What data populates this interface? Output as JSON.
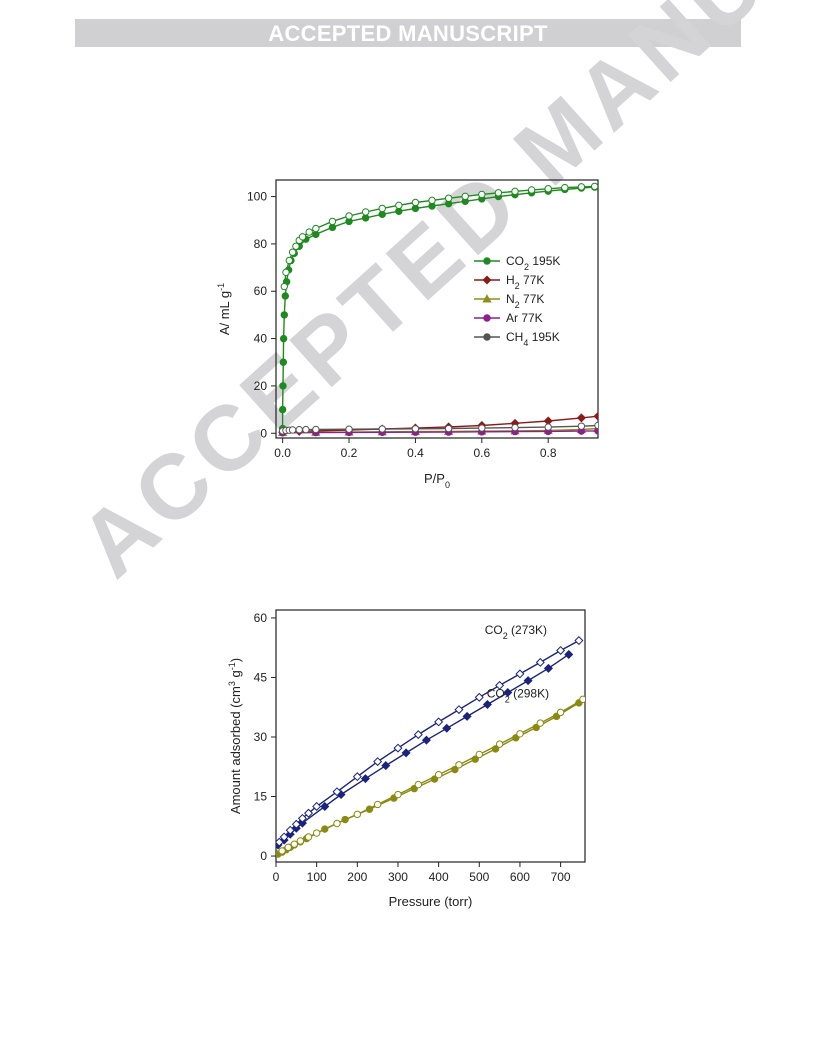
{
  "banner": "ACCEPTED MANUSCRIPT",
  "watermark": "ACCEPTED MANUSCRIPT",
  "chart_data": [
    {
      "type": "scatter",
      "xlabel": "P/P0",
      "xlabel_main": "P/P",
      "xlabel_sub": "0",
      "ylabel": "A/ mL g-1",
      "ylabel_main": "A/ mL g",
      "ylabel_sup": "-1",
      "xlim": [
        -0.02,
        0.95
      ],
      "ylim": [
        -2,
        107
      ],
      "xticks": [
        0.0,
        0.2,
        0.4,
        0.6,
        0.8
      ],
      "xtick_labels": [
        "0.0",
        "0.2",
        "0.4",
        "0.6",
        "0.8"
      ],
      "yticks": [
        0,
        20,
        40,
        60,
        80,
        100
      ],
      "ytick_labels": [
        "0",
        "20",
        "40",
        "60",
        "80",
        "100"
      ],
      "legend_position": "center-right",
      "legend": [
        {
          "main": "CO",
          "sub": "2",
          "rest": " 195K",
          "color": "#1f8a1f",
          "marker": "circle"
        },
        {
          "main": "H",
          "sub": "2",
          "rest": " 77K",
          "color": "#8b1a1a",
          "marker": "diamond"
        },
        {
          "main": "N",
          "sub": "2",
          "rest": " 77K",
          "color": "#8f8f1a",
          "marker": "triangle"
        },
        {
          "main": "Ar 77K",
          "sub": "",
          "rest": "",
          "color": "#8e1f8e",
          "marker": "circle"
        },
        {
          "main": "CH",
          "sub": "4",
          "rest": " 195K",
          "color": "#555555",
          "marker": "circle"
        }
      ],
      "series": [
        {
          "name": "CO2 195K adsorption",
          "color": "#1f8a1f",
          "marker": "circle",
          "filled": true,
          "x": [
            0.0,
            0.0,
            0.001,
            0.002,
            0.003,
            0.005,
            0.008,
            0.012,
            0.018,
            0.025,
            0.035,
            0.05,
            0.07,
            0.1,
            0.15,
            0.2,
            0.25,
            0.3,
            0.35,
            0.4,
            0.45,
            0.5,
            0.55,
            0.6,
            0.65,
            0.7,
            0.75,
            0.8,
            0.85,
            0.9,
            0.94
          ],
          "y": [
            2,
            10,
            20,
            30,
            40,
            50,
            58,
            64,
            69,
            73,
            76,
            79,
            82,
            84,
            87,
            89.5,
            91,
            92.5,
            93.8,
            95,
            96,
            97,
            98,
            99,
            100,
            100.8,
            101.6,
            102.3,
            103,
            103.6,
            104
          ]
        },
        {
          "name": "CO2 195K desorption",
          "color": "#1f8a1f",
          "marker": "circle",
          "filled": false,
          "x": [
            0.005,
            0.01,
            0.02,
            0.03,
            0.04,
            0.05,
            0.06,
            0.08,
            0.1,
            0.15,
            0.2,
            0.25,
            0.3,
            0.35,
            0.4,
            0.45,
            0.5,
            0.55,
            0.6,
            0.65,
            0.7,
            0.75,
            0.8,
            0.85,
            0.9,
            0.94
          ],
          "y": [
            62,
            68,
            73,
            76.5,
            79,
            81.5,
            83,
            85,
            86.5,
            89.5,
            91.8,
            93.5,
            95,
            96.3,
            97.5,
            98.4,
            99.3,
            100.1,
            100.9,
            101.6,
            102.2,
            102.8,
            103.3,
            103.8,
            104.1,
            104.3
          ]
        },
        {
          "name": "H2 77K",
          "color": "#8b1a1a",
          "marker": "diamond",
          "filled": true,
          "x": [
            0.0,
            0.05,
            0.1,
            0.2,
            0.3,
            0.4,
            0.5,
            0.6,
            0.7,
            0.8,
            0.9,
            0.95
          ],
          "y": [
            0.5,
            0.8,
            1.0,
            1.4,
            1.8,
            2.2,
            2.7,
            3.3,
            4.2,
            5.2,
            6.5,
            7.2
          ]
        },
        {
          "name": "N2 77K",
          "color": "#8f8f1a",
          "marker": "triangle",
          "filled": true,
          "x": [
            0.0,
            0.1,
            0.2,
            0.3,
            0.4,
            0.5,
            0.6,
            0.7,
            0.8,
            0.9,
            0.95
          ],
          "y": [
            0.3,
            0.4,
            0.5,
            0.6,
            0.7,
            0.8,
            0.9,
            1.0,
            1.2,
            1.6,
            2.0
          ]
        },
        {
          "name": "Ar 77K",
          "color": "#8e1f8e",
          "marker": "circle",
          "filled": true,
          "x": [
            0.0,
            0.1,
            0.2,
            0.3,
            0.4,
            0.5,
            0.6,
            0.7,
            0.8,
            0.9,
            0.95
          ],
          "y": [
            0.2,
            0.3,
            0.35,
            0.4,
            0.45,
            0.5,
            0.6,
            0.7,
            0.8,
            0.9,
            1.0
          ]
        },
        {
          "name": "CH4 195K",
          "color": "#555555",
          "marker": "circle",
          "filled": false,
          "x": [
            0.0,
            0.01,
            0.02,
            0.03,
            0.05,
            0.07,
            0.1,
            0.2,
            0.3,
            0.4,
            0.5,
            0.6,
            0.7,
            0.8,
            0.9,
            0.95
          ],
          "y": [
            1.0,
            1.2,
            1.3,
            1.4,
            1.5,
            1.55,
            1.6,
            1.7,
            1.8,
            1.9,
            2.0,
            2.2,
            2.4,
            2.6,
            3.0,
            3.3
          ]
        }
      ]
    },
    {
      "type": "scatter",
      "xlabel": "Pressure (torr)",
      "ylabel": "Amount adsorbed (cm3 g-1)",
      "ylabel_main": "Amount adsorbed (cm",
      "ylabel_sup1": "3",
      "ylabel_mid": " g",
      "ylabel_sup2": "-1",
      "ylabel_end": ")",
      "xlim": [
        0,
        760
      ],
      "ylim": [
        -1.5,
        62
      ],
      "xticks": [
        0,
        100,
        200,
        300,
        400,
        500,
        600,
        700
      ],
      "xtick_labels": [
        "0",
        "100",
        "200",
        "300",
        "400",
        "500",
        "600",
        "700"
      ],
      "yticks": [
        0,
        15,
        30,
        45,
        60
      ],
      "ytick_labels": [
        "0",
        "15",
        "30",
        "45",
        "60"
      ],
      "annotations": [
        {
          "main": "CO",
          "sub": "2",
          "rest": " (273K)",
          "color": "#1a237e",
          "x": 590,
          "y": 56
        },
        {
          "main": "CO",
          "sub": "2",
          "rest": " (298K)",
          "color": "#8a8a10",
          "x": 595,
          "y": 40
        }
      ],
      "series": [
        {
          "name": "CO2 (273K) adsorption",
          "color": "#1a237e",
          "marker": "diamond",
          "filled": true,
          "x": [
            5,
            20,
            35,
            50,
            65,
            120,
            160,
            220,
            270,
            320,
            370,
            420,
            470,
            520,
            570,
            620,
            670,
            720
          ],
          "y": [
            2.8,
            4.0,
            5.5,
            7.0,
            8.3,
            12.5,
            15.5,
            19.5,
            22.8,
            26.0,
            29.2,
            32.2,
            35.2,
            38.2,
            41.2,
            44.2,
            47.3,
            50.8
          ]
        },
        {
          "name": "CO2 (273K) desorption",
          "color": "#1a237e",
          "marker": "diamond",
          "filled": false,
          "x": [
            745,
            700,
            650,
            600,
            550,
            500,
            450,
            400,
            350,
            300,
            250,
            200,
            150,
            100,
            80,
            65,
            50,
            35,
            20,
            8
          ],
          "y": [
            54.3,
            51.8,
            48.8,
            45.9,
            43.0,
            40.0,
            36.9,
            33.8,
            30.6,
            27.2,
            23.8,
            20.0,
            16.2,
            12.5,
            10.8,
            9.5,
            8.0,
            6.5,
            4.8,
            3.5
          ]
        },
        {
          "name": "CO2 (298K) adsorption",
          "color": "#8a8a10",
          "marker": "circle",
          "filled": true,
          "x": [
            5,
            15,
            25,
            35,
            45,
            60,
            75,
            120,
            170,
            230,
            290,
            340,
            390,
            440,
            490,
            540,
            590,
            640,
            690,
            745
          ],
          "y": [
            0.5,
            1.0,
            1.6,
            2.2,
            2.8,
            3.6,
            4.4,
            6.8,
            9.2,
            11.8,
            14.6,
            17.0,
            19.4,
            21.8,
            24.4,
            27.0,
            29.8,
            32.4,
            35.2,
            38.6
          ]
        },
        {
          "name": "CO2 (298K) desorption",
          "color": "#8a8a10",
          "marker": "circle",
          "filled": false,
          "x": [
            755,
            700,
            650,
            600,
            550,
            500,
            450,
            400,
            350,
            300,
            250,
            200,
            150,
            100,
            80,
            60,
            45,
            30,
            15
          ],
          "y": [
            39.5,
            36.2,
            33.5,
            30.8,
            28.2,
            25.6,
            23.0,
            20.5,
            18.0,
            15.5,
            13.0,
            10.5,
            8.2,
            5.8,
            4.8,
            3.8,
            3.0,
            2.2,
            1.3
          ]
        }
      ]
    }
  ]
}
